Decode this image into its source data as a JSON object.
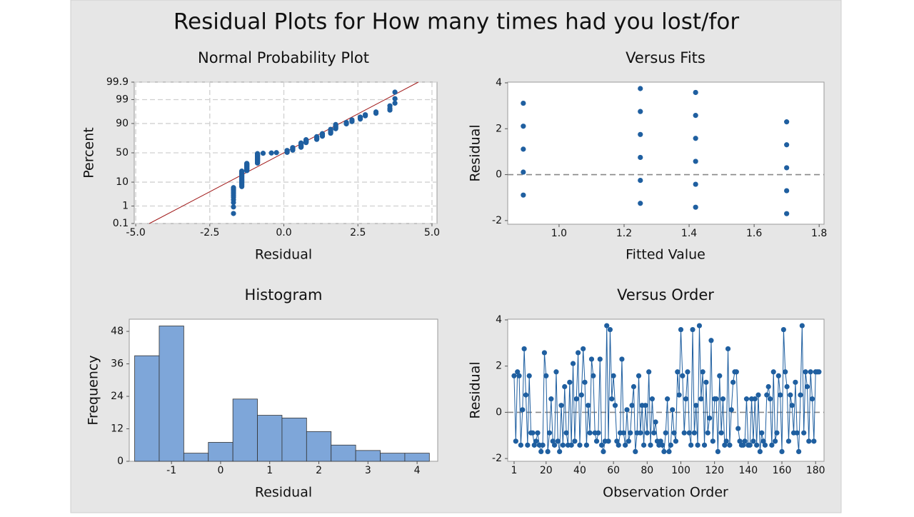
{
  "title": "Residual Plots for How many times had you lost/for",
  "chart_data": [
    {
      "type": "probability",
      "title": "Normal Probability Plot",
      "x_label": "Residual",
      "y_label": "Percent",
      "color": "#1f5fa0",
      "grid": true,
      "yscale": "normal-probability",
      "xlim": [
        -5.05,
        5.17
      ],
      "xticks": [
        {
          "value": -5,
          "label": "-5.0"
        },
        -2.5,
        {
          "value": 0,
          "label": "0.0"
        },
        2.5,
        {
          "value": 5,
          "label": "5.0"
        }
      ],
      "ylim": [
        0.1,
        99.9
      ],
      "yticks": [
        0.1,
        1,
        10,
        50,
        90,
        99,
        99.9
      ],
      "reference_line": {
        "x": [
          -4.54,
          4.54
        ],
        "values": [
          0.1,
          99.9
        ],
        "color": "#a01818"
      },
      "x": [
        -1.7,
        -1.7,
        -1.7,
        -1.7,
        -1.7,
        -1.7,
        -1.7,
        -1.7,
        -1.7,
        -1.7,
        -1.7,
        -1.7,
        -1.42,
        -1.42,
        -1.42,
        -1.42,
        -1.42,
        -1.42,
        -1.42,
        -1.42,
        -1.42,
        -1.42,
        -1.42,
        -1.42,
        -1.42,
        -1.42,
        -1.42,
        -1.42,
        -1.42,
        -1.42,
        -1.42,
        -1.42,
        -1.42,
        -1.42,
        -1.42,
        -1.42,
        -1.42,
        -1.42,
        -1.42,
        -1.25,
        -1.25,
        -1.25,
        -1.25,
        -1.25,
        -1.25,
        -1.25,
        -1.25,
        -1.25,
        -1.25,
        -1.25,
        -1.25,
        -1.25,
        -1.25,
        -1.25,
        -1.25,
        -1.25,
        -1.25,
        -1.25,
        -1.25,
        -0.89,
        -0.89,
        -0.89,
        -0.89,
        -0.89,
        -0.89,
        -0.89,
        -0.89,
        -0.89,
        -0.89,
        -0.89,
        -0.89,
        -0.89,
        -0.89,
        -0.89,
        -0.89,
        -0.89,
        -0.89,
        -0.89,
        -0.89,
        -0.89,
        -0.89,
        -0.89,
        -0.89,
        -0.89,
        -0.89,
        -0.89,
        -0.89,
        -0.89,
        -0.89,
        -0.7,
        -0.42,
        -0.25,
        0.11,
        0.11,
        0.11,
        0.11,
        0.11,
        0.11,
        0.11,
        0.3,
        0.3,
        0.3,
        0.3,
        0.3,
        0.3,
        0.3,
        0.3,
        0.3,
        0.58,
        0.58,
        0.58,
        0.58,
        0.58,
        0.58,
        0.58,
        0.58,
        0.58,
        0.58,
        0.58,
        0.58,
        0.58,
        0.58,
        0.75,
        0.75,
        0.75,
        0.75,
        0.75,
        0.75,
        0.75,
        0.75,
        0.75,
        1.11,
        1.11,
        1.11,
        1.11,
        1.11,
        1.11,
        1.11,
        1.11,
        1.3,
        1.3,
        1.3,
        1.3,
        1.3,
        1.3,
        1.3,
        1.58,
        1.58,
        1.58,
        1.58,
        1.58,
        1.58,
        1.58,
        1.58,
        1.58,
        1.75,
        1.75,
        1.75,
        1.75,
        1.75,
        1.75,
        1.75,
        1.75,
        2.11,
        2.11,
        2.11,
        2.3,
        2.3,
        2.3,
        2.58,
        2.58,
        2.58,
        2.75,
        2.75,
        3.11,
        3.11,
        3.58,
        3.58,
        3.58,
        3.75,
        3.75,
        3.75
      ],
      "values": [
        0.4,
        0.9,
        1.5,
        2.0,
        2.6,
        3.1,
        3.7,
        4.2,
        4.8,
        5.3,
        5.9,
        6.4,
        7.0,
        7.5,
        8.1,
        8.6,
        9.2,
        9.7,
        10.3,
        10.8,
        11.4,
        11.9,
        12.4,
        13.0,
        13.5,
        14.1,
        14.6,
        15.2,
        15.7,
        16.3,
        16.8,
        17.4,
        17.9,
        18.5,
        19.0,
        19.6,
        20.1,
        20.7,
        21.2,
        21.8,
        22.3,
        22.9,
        23.4,
        24.0,
        24.5,
        25.1,
        25.6,
        26.2,
        26.7,
        27.3,
        27.8,
        28.3,
        28.9,
        29.4,
        30.0,
        30.5,
        31.1,
        31.6,
        32.2,
        32.7,
        33.3,
        33.8,
        34.4,
        34.9,
        35.5,
        36.0,
        36.6,
        37.1,
        37.7,
        38.2,
        38.8,
        39.3,
        39.9,
        40.4,
        40.9,
        41.5,
        42.0,
        42.6,
        43.1,
        43.7,
        44.2,
        44.8,
        45.3,
        45.9,
        46.4,
        47.0,
        47.5,
        48.1,
        48.6,
        49.2,
        49.7,
        50.3,
        50.8,
        51.4,
        51.9,
        52.5,
        53.0,
        53.6,
        54.1,
        54.7,
        55.2,
        55.8,
        56.3,
        56.8,
        57.4,
        57.9,
        58.5,
        59.0,
        59.6,
        60.1,
        60.7,
        61.2,
        61.8,
        62.3,
        62.9,
        63.4,
        64.0,
        64.5,
        65.1,
        65.6,
        66.2,
        66.7,
        67.3,
        67.8,
        68.4,
        68.9,
        69.5,
        70.0,
        70.6,
        71.1,
        71.7,
        72.2,
        72.7,
        73.3,
        73.8,
        74.4,
        74.9,
        75.5,
        76.0,
        76.6,
        77.1,
        77.7,
        78.2,
        78.8,
        79.3,
        79.9,
        80.4,
        81.0,
        81.5,
        82.1,
        82.6,
        83.2,
        83.7,
        84.3,
        84.8,
        85.4,
        85.9,
        86.5,
        87.0,
        87.6,
        88.1,
        88.6,
        89.2,
        89.7,
        90.3,
        90.8,
        91.4,
        91.9,
        92.5,
        93.0,
        93.6,
        94.1,
        94.7,
        95.2,
        95.8,
        96.3,
        96.9,
        97.4,
        98.0,
        98.5,
        99.1,
        99.6
      ]
    },
    {
      "type": "scatter",
      "title": "Versus Fits",
      "x_label": "Fitted Value",
      "y_label": "Residual",
      "color": "#1f5fa0",
      "reference_y": 0,
      "reference_color": "#888888",
      "xlim": [
        0.842,
        1.815
      ],
      "xticks": [
        {
          "value": 1,
          "label": "1.0"
        },
        1.2,
        1.4,
        1.6,
        1.8
      ],
      "ylim": [
        -2.16,
        4.03
      ],
      "yticks": [
        -2,
        0,
        2,
        4
      ],
      "x": [
        0.89,
        0.89,
        0.89,
        0.89,
        0.89,
        1.25,
        1.25,
        1.25,
        1.25,
        1.25,
        1.25,
        1.42,
        1.42,
        1.42,
        1.42,
        1.42,
        1.42,
        1.7,
        1.7,
        1.7,
        1.7,
        1.7
      ],
      "values": [
        -0.89,
        0.11,
        1.11,
        2.11,
        3.11,
        -1.25,
        -0.25,
        0.75,
        1.75,
        2.75,
        3.75,
        -1.42,
        -0.42,
        0.58,
        1.58,
        2.58,
        3.58,
        -1.7,
        -0.7,
        0.3,
        1.3,
        2.3
      ]
    },
    {
      "type": "histogram",
      "title": "Histogram",
      "x_label": "Residual",
      "y_label": "Frequency",
      "color": "#7ea6d9",
      "xlim": [
        -1.86,
        4.42
      ],
      "xticks": [
        -1,
        0,
        1,
        2,
        3,
        4
      ],
      "ylim": [
        0,
        52.5
      ],
      "yticks": [
        0,
        12,
        24,
        36,
        48
      ],
      "bins": [
        -1.75,
        -1.25,
        -0.75,
        -0.25,
        0.25,
        0.75,
        1.25,
        1.75,
        2.25,
        2.75,
        3.25,
        3.75,
        4.25
      ],
      "values": [
        39,
        50,
        3,
        7,
        23,
        17,
        16,
        11,
        6,
        4,
        3,
        3
      ]
    },
    {
      "type": "line",
      "title": "Versus Order",
      "x_label": "Observation Order",
      "y_label": "Residual",
      "color": "#1f5fa0",
      "reference_y": 0,
      "reference_color": "#888888",
      "xlim": [
        -2.8,
        185
      ],
      "xticks": [
        1,
        20,
        40,
        60,
        80,
        100,
        120,
        140,
        160,
        180
      ],
      "ylim": [
        -2.12,
        4.03
      ],
      "yticks": [
        -2,
        0,
        2,
        4
      ],
      "x": [
        1,
        2,
        3,
        4,
        5,
        6,
        7,
        8,
        9,
        10,
        11,
        12,
        13,
        14,
        15,
        16,
        17,
        18,
        19,
        20,
        21,
        22,
        23,
        24,
        25,
        26,
        27,
        28,
        29,
        30,
        31,
        32,
        33,
        34,
        35,
        36,
        37,
        38,
        39,
        40,
        41,
        42,
        43,
        44,
        45,
        46,
        47,
        48,
        49,
        50,
        51,
        52,
        53,
        54,
        55,
        56,
        57,
        58,
        59,
        60,
        61,
        62,
        63,
        64,
        65,
        66,
        67,
        68,
        69,
        70,
        71,
        72,
        73,
        74,
        75,
        76,
        77,
        78,
        79,
        80,
        81,
        82,
        83,
        84,
        85,
        86,
        87,
        88,
        89,
        90,
        91,
        92,
        93,
        94,
        95,
        96,
        97,
        98,
        99,
        100,
        101,
        102,
        103,
        104,
        105,
        106,
        107,
        108,
        109,
        110,
        111,
        112,
        113,
        114,
        115,
        116,
        117,
        118,
        119,
        120,
        121,
        122,
        123,
        124,
        125,
        126,
        127,
        128,
        129,
        130,
        131,
        132,
        133,
        134,
        135,
        136,
        137,
        138,
        139,
        140,
        141,
        142,
        143,
        144,
        145,
        146,
        147,
        148,
        149,
        150,
        151,
        152,
        153,
        154,
        155,
        156,
        157,
        158,
        159,
        160,
        161,
        162,
        163,
        164,
        165,
        166,
        167,
        168,
        169,
        170,
        171,
        172,
        173,
        174,
        175,
        176,
        177,
        178,
        179,
        180,
        181,
        182
      ],
      "values": [
        1.58,
        -1.25,
        1.75,
        1.58,
        -1.42,
        0.11,
        2.75,
        0.75,
        -1.42,
        1.58,
        -0.89,
        -0.89,
        -1.42,
        -1.25,
        -0.89,
        -1.42,
        -1.7,
        -1.42,
        2.58,
        1.58,
        -1.7,
        -0.89,
        0.58,
        -1.25,
        -1.42,
        1.75,
        -1.25,
        -1.7,
        0.3,
        -1.42,
        1.11,
        -0.89,
        -1.42,
        1.3,
        -1.42,
        2.11,
        -1.25,
        0.58,
        2.58,
        -1.42,
        0.75,
        2.75,
        1.3,
        -1.42,
        0.3,
        -0.89,
        2.3,
        1.58,
        -0.89,
        -1.25,
        -0.89,
        2.3,
        -1.42,
        -1.7,
        -1.25,
        3.75,
        -1.25,
        3.58,
        0.58,
        1.58,
        0.3,
        -1.25,
        -1.42,
        -0.89,
        2.3,
        -0.89,
        -1.42,
        0.11,
        -1.25,
        -0.89,
        0.3,
        1.11,
        -1.7,
        -0.89,
        1.58,
        -0.89,
        0.3,
        -1.42,
        0.3,
        -0.89,
        1.75,
        -1.42,
        0.58,
        -0.89,
        -0.42,
        -1.25,
        -1.42,
        -1.25,
        -1.42,
        -1.7,
        -0.89,
        0.58,
        -1.7,
        -1.42,
        0.11,
        -0.89,
        -1.25,
        1.75,
        0.75,
        3.58,
        1.58,
        -0.89,
        0.58,
        1.75,
        -0.89,
        -1.42,
        3.58,
        -0.89,
        0.3,
        -1.42,
        3.75,
        0.58,
        1.75,
        -1.42,
        1.3,
        -0.89,
        -0.25,
        3.11,
        -1.25,
        0.58,
        0.58,
        -1.7,
        1.58,
        -0.89,
        0.58,
        -1.42,
        -1.25,
        2.75,
        -1.42,
        0.11,
        1.3,
        1.75,
        1.75,
        -0.7,
        -1.25,
        -1.42,
        -1.42,
        -1.25,
        0.58,
        -1.42,
        -1.42,
        0.58,
        -1.25,
        0.58,
        -1.42,
        0.75,
        -1.7,
        -0.89,
        -1.25,
        -1.42,
        0.75,
        1.11,
        0.58,
        -1.42,
        1.75,
        -1.25,
        -0.89,
        1.58,
        0.75,
        -1.7,
        3.58,
        1.75,
        1.11,
        -1.25,
        0.75,
        0.3,
        -0.89,
        1.3,
        -0.89,
        -1.7,
        0.75,
        3.75,
        -0.89,
        1.75,
        1.11,
        -1.25,
        1.75,
        0.58,
        -1.25,
        1.75,
        1.75,
        1.75
      ]
    }
  ]
}
